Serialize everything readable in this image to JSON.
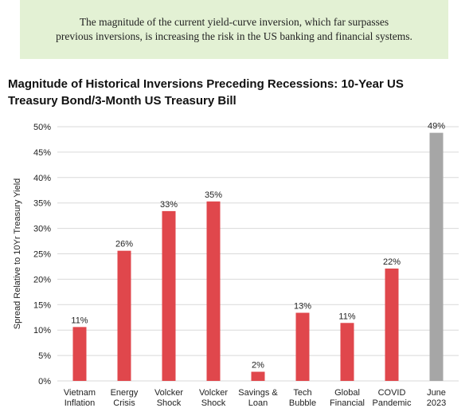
{
  "banner": {
    "line1": "The magnitude of the current yield-curve inversion, which far surpasses",
    "line2": "previous inversions, is increasing the risk in the US banking and financial systems.",
    "background": "#e3f1d4"
  },
  "chart_data": {
    "type": "bar",
    "title_line1": "Magnitude of Historical Inversions Preceding Recessions: 10-Year US",
    "title_line2": "Treasury Bond/3-Month US Treasury Bill",
    "ylabel": "Spread Relative to 10Yr Treasury Yield",
    "xlabel": "",
    "ylim": [
      0,
      50
    ],
    "yticks": [
      "0%",
      "5%",
      "10%",
      "15%",
      "20%",
      "25%",
      "30%",
      "35%",
      "40%",
      "45%",
      "50%"
    ],
    "grid": true,
    "categories": [
      [
        "Vietnam",
        "Inflation"
      ],
      [
        "Energy",
        "Crisis"
      ],
      [
        "Volcker",
        "Shock"
      ],
      [
        "Volcker",
        "Shock"
      ],
      [
        "Savings &",
        "Loan"
      ],
      [
        "Tech",
        "Bubble"
      ],
      [
        "Global",
        "Financial"
      ],
      [
        "COVID",
        "Pandemic"
      ],
      [
        "June",
        "2023"
      ]
    ],
    "values": [
      10.6,
      25.6,
      33.4,
      35.3,
      1.8,
      13.4,
      11.4,
      22.1,
      48.8
    ],
    "data_labels": [
      "11%",
      "26%",
      "33%",
      "35%",
      "2%",
      "13%",
      "11%",
      "22%",
      "49%"
    ],
    "colors": [
      "#e0474c",
      "#e0474c",
      "#e0474c",
      "#e0474c",
      "#e0474c",
      "#e0474c",
      "#e0474c",
      "#e0474c",
      "#a6a6a6"
    ]
  }
}
